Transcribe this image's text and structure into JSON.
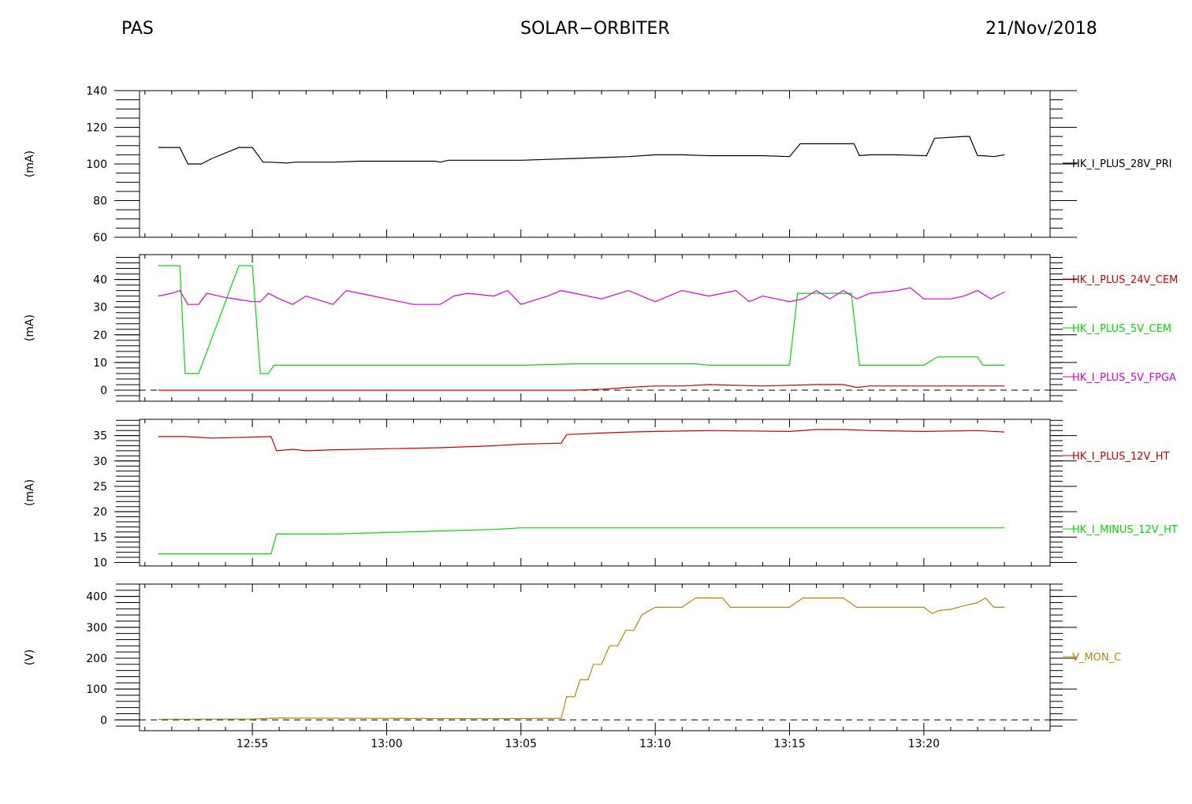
{
  "header": {
    "left": "PAS",
    "center": "SOLAR−ORBITER",
    "right": "21/Nov/2018"
  },
  "x_axis": {
    "unit": "minutes since 12:00",
    "min": 50.8,
    "max": 84.7,
    "tick_values": [
      55,
      60,
      65,
      70,
      75,
      80
    ],
    "tick_labels": [
      "12:55",
      "13:00",
      "13:05",
      "13:10",
      "13:15",
      "13:20"
    ],
    "minor_step": 1
  },
  "chart_data": [
    {
      "type": "line",
      "ylabel": "(mA)",
      "ylim": [
        60,
        140
      ],
      "y_ticks": [
        60,
        80,
        100,
        120,
        140
      ],
      "minor_step": 5,
      "series": [
        {
          "name": "HK_I_PLUS_28V_PRI",
          "color": "#000000",
          "x": [
            51.5,
            52.3,
            52.6,
            53.1,
            53.5,
            54.5,
            55.0,
            55.4,
            55.6,
            56.3,
            56.6,
            57.0,
            58.0,
            59.0,
            60.0,
            61.0,
            61.8,
            62.0,
            62.3,
            63.0,
            64.0,
            65.0,
            66.0,
            67.0,
            68.0,
            69.0,
            70.0,
            71.0,
            72.0,
            73.0,
            74.0,
            75.0,
            75.4,
            76.5,
            77.4,
            77.6,
            78.0,
            79.0,
            80.0,
            80.1,
            80.4,
            81.5,
            81.7,
            82.0,
            82.2,
            82.6,
            83.0
          ],
          "y": [
            109,
            109,
            100,
            100,
            103,
            109,
            109,
            101,
            101,
            100.5,
            101,
            101,
            101,
            101.5,
            101.5,
            101.5,
            101.5,
            101,
            102,
            102,
            102,
            102,
            102.5,
            103,
            103.5,
            104,
            105,
            105,
            104.5,
            104.5,
            104.5,
            104,
            111,
            111,
            111,
            104.5,
            105,
            105,
            104.5,
            104.5,
            114,
            115,
            115,
            104.5,
            104.5,
            104,
            105
          ]
        }
      ]
    },
    {
      "type": "line",
      "ylabel": "(mA)",
      "ylim": [
        -4,
        49
      ],
      "y_ticks": [
        0,
        10,
        20,
        30,
        40
      ],
      "minor_step": 2,
      "zero_line": true,
      "series": [
        {
          "name": "HK_I_PLUS_24V_CEM",
          "color": "#cc0000",
          "x": [
            51.5,
            55.0,
            58.0,
            61.0,
            64.0,
            67.0,
            68.0,
            69.0,
            70.0,
            71.0,
            72.0,
            74.0,
            76.0,
            77.0,
            77.5,
            78.0,
            80.0,
            83.0
          ],
          "y": [
            0,
            0,
            0,
            0,
            0,
            0,
            0.3,
            1.0,
            1.5,
            1.5,
            2.0,
            1.5,
            2.0,
            2.0,
            1.0,
            1.5,
            1.5,
            1.5
          ]
        },
        {
          "name": "HK_I_PLUS_5V_CEM",
          "color": "#00dd00",
          "x": [
            51.5,
            52.3,
            52.5,
            53.0,
            54.5,
            55.0,
            55.3,
            55.6,
            55.8,
            56.0,
            60.0,
            65.0,
            67.0,
            70.0,
            71.5,
            72.0,
            73.0,
            75.0,
            75.3,
            75.5,
            76.0,
            76.5,
            77.0,
            77.3,
            77.6,
            78.0,
            80.0,
            80.5,
            81.5,
            82.0,
            82.2,
            83.0
          ],
          "y": [
            45,
            45,
            6,
            6,
            45,
            45,
            6,
            6,
            9,
            9,
            9,
            9,
            9.5,
            9.5,
            9.5,
            9,
            9,
            9,
            35,
            35,
            35,
            35,
            35,
            35,
            9,
            9,
            9,
            12,
            12,
            12,
            9,
            9
          ]
        },
        {
          "name": "HK_I_PLUS_5V_FPGA",
          "color": "#dd00dd",
          "x": [
            51.5,
            52.0,
            52.3,
            52.6,
            53.0,
            53.3,
            54.0,
            55.0,
            55.3,
            55.6,
            56.0,
            56.5,
            57.0,
            58.0,
            58.5,
            59.0,
            59.5,
            60.0,
            61.0,
            62.0,
            62.5,
            63.0,
            64.0,
            64.5,
            65.0,
            66.0,
            66.5,
            67.0,
            68.0,
            69.0,
            70.0,
            71.0,
            72.0,
            73.0,
            73.5,
            74.0,
            75.0,
            75.5,
            76.0,
            76.5,
            77.0,
            77.5,
            78.0,
            79.0,
            79.5,
            80.0,
            81.0,
            81.5,
            82.0,
            82.5,
            83.0
          ],
          "y": [
            34,
            35,
            36,
            31,
            31,
            35,
            33.5,
            32,
            32,
            35,
            33,
            31,
            34,
            31,
            36,
            35,
            34,
            33,
            31,
            31,
            34,
            35,
            34,
            36,
            31,
            34,
            36,
            35,
            33,
            36,
            32,
            36,
            34,
            36,
            32,
            34,
            32,
            33,
            36,
            33,
            36,
            33,
            35,
            36,
            37,
            33,
            33,
            34,
            36,
            33,
            35.5
          ]
        }
      ]
    },
    {
      "type": "line",
      "ylabel": "(mA)",
      "ylim": [
        9.3,
        38.2
      ],
      "y_ticks": [
        10,
        15,
        20,
        25,
        30,
        35
      ],
      "minor_step": 1,
      "series": [
        {
          "name": "HK_I_PLUS_12V_HT",
          "color": "#cc0000",
          "x": [
            51.5,
            52.5,
            53.5,
            55.7,
            55.9,
            56.5,
            57.0,
            58.0,
            60.0,
            62.0,
            64.0,
            65.0,
            66.5,
            66.7,
            68.0,
            69.0,
            70.0,
            72.0,
            75.0,
            76.0,
            77.0,
            78.0,
            80.0,
            82.0,
            83.0
          ],
          "y": [
            34.8,
            34.8,
            34.5,
            34.8,
            32.0,
            32.3,
            32.0,
            32.2,
            32.4,
            32.6,
            33.0,
            33.3,
            33.5,
            35.2,
            35.5,
            35.7,
            35.8,
            36.0,
            35.8,
            36.2,
            36.2,
            36.0,
            35.8,
            36.0,
            35.7
          ]
        },
        {
          "name": "HK_I_MINUS_12V_HT",
          "color": "#00dd00",
          "x": [
            51.5,
            55.7,
            55.9,
            58.0,
            60.0,
            62.0,
            64.0,
            65.0,
            68.0,
            70.0,
            75.0,
            80.0,
            83.0
          ],
          "y": [
            11.7,
            11.7,
            15.6,
            15.6,
            15.9,
            16.2,
            16.5,
            16.8,
            16.8,
            16.8,
            16.8,
            16.8,
            16.8
          ]
        }
      ]
    },
    {
      "type": "line",
      "ylabel": "(V)",
      "ylim": [
        -35,
        440
      ],
      "y_ticks": [
        0,
        100,
        200,
        300,
        400
      ],
      "minor_step": 20,
      "zero_line": true,
      "series": [
        {
          "name": "V_MON_C",
          "color": "#b8860b",
          "x": [
            51.5,
            55.0,
            56.0,
            60.0,
            64.0,
            66.0,
            66.5,
            66.7,
            67.0,
            67.2,
            67.5,
            67.7,
            68.0,
            68.3,
            68.6,
            68.9,
            69.2,
            69.5,
            70.0,
            71.0,
            71.5,
            72.0,
            72.5,
            72.8,
            73.0,
            74.0,
            75.0,
            75.5,
            76.0,
            77.0,
            77.5,
            78.0,
            79.0,
            80.0,
            80.3,
            80.6,
            81.0,
            81.5,
            82.0,
            82.3,
            82.6,
            83.0
          ],
          "y": [
            2,
            3,
            6,
            5,
            4,
            5,
            5,
            75,
            75,
            130,
            130,
            180,
            180,
            240,
            240,
            290,
            290,
            340,
            365,
            365,
            395,
            395,
            395,
            365,
            365,
            365,
            365,
            395,
            395,
            395,
            365,
            365,
            365,
            365,
            345,
            355,
            358,
            370,
            380,
            395,
            365,
            365
          ]
        }
      ]
    }
  ]
}
